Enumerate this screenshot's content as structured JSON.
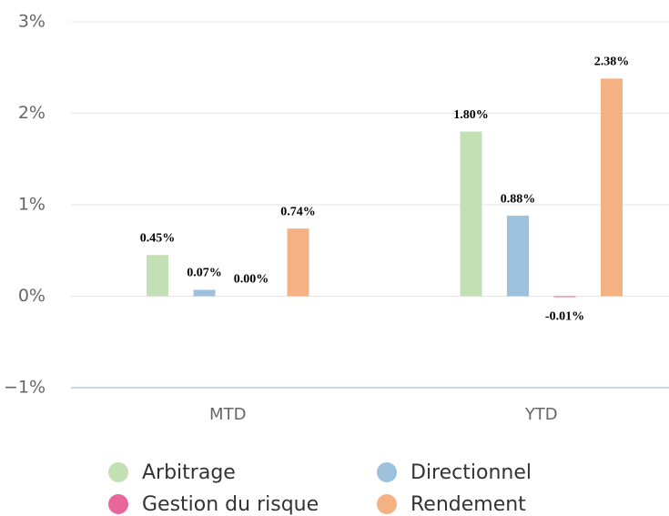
{
  "chart_data": {
    "type": "bar",
    "categories": [
      "MTD",
      "YTD"
    ],
    "series": [
      {
        "name": "Arbitrage",
        "color": "#c3e0b4",
        "values": [
          0.45,
          1.8
        ],
        "value_labels": [
          "0.45%",
          "1.80%"
        ]
      },
      {
        "name": "Directionnel",
        "color": "#9dc0dd",
        "values": [
          0.07,
          0.88
        ],
        "value_labels": [
          "0.07%",
          "0.88%"
        ]
      },
      {
        "name": "Gestion du risque",
        "color": "#e8679a",
        "values": [
          0.0,
          -0.01
        ],
        "value_labels": [
          "0.00%",
          "-0.01%"
        ]
      },
      {
        "name": "Rendement",
        "color": "#f4b183",
        "values": [
          0.74,
          2.38
        ],
        "value_labels": [
          "0.74%",
          "2.38%"
        ]
      }
    ],
    "ylim": [
      -1,
      3
    ],
    "yticks": [
      {
        "value": -1,
        "label": "−1%"
      },
      {
        "value": 0,
        "label": "0%"
      },
      {
        "value": 1,
        "label": "1%"
      },
      {
        "value": 2,
        "label": "2%"
      },
      {
        "value": 3,
        "label": "3%"
      }
    ],
    "grid": true
  }
}
